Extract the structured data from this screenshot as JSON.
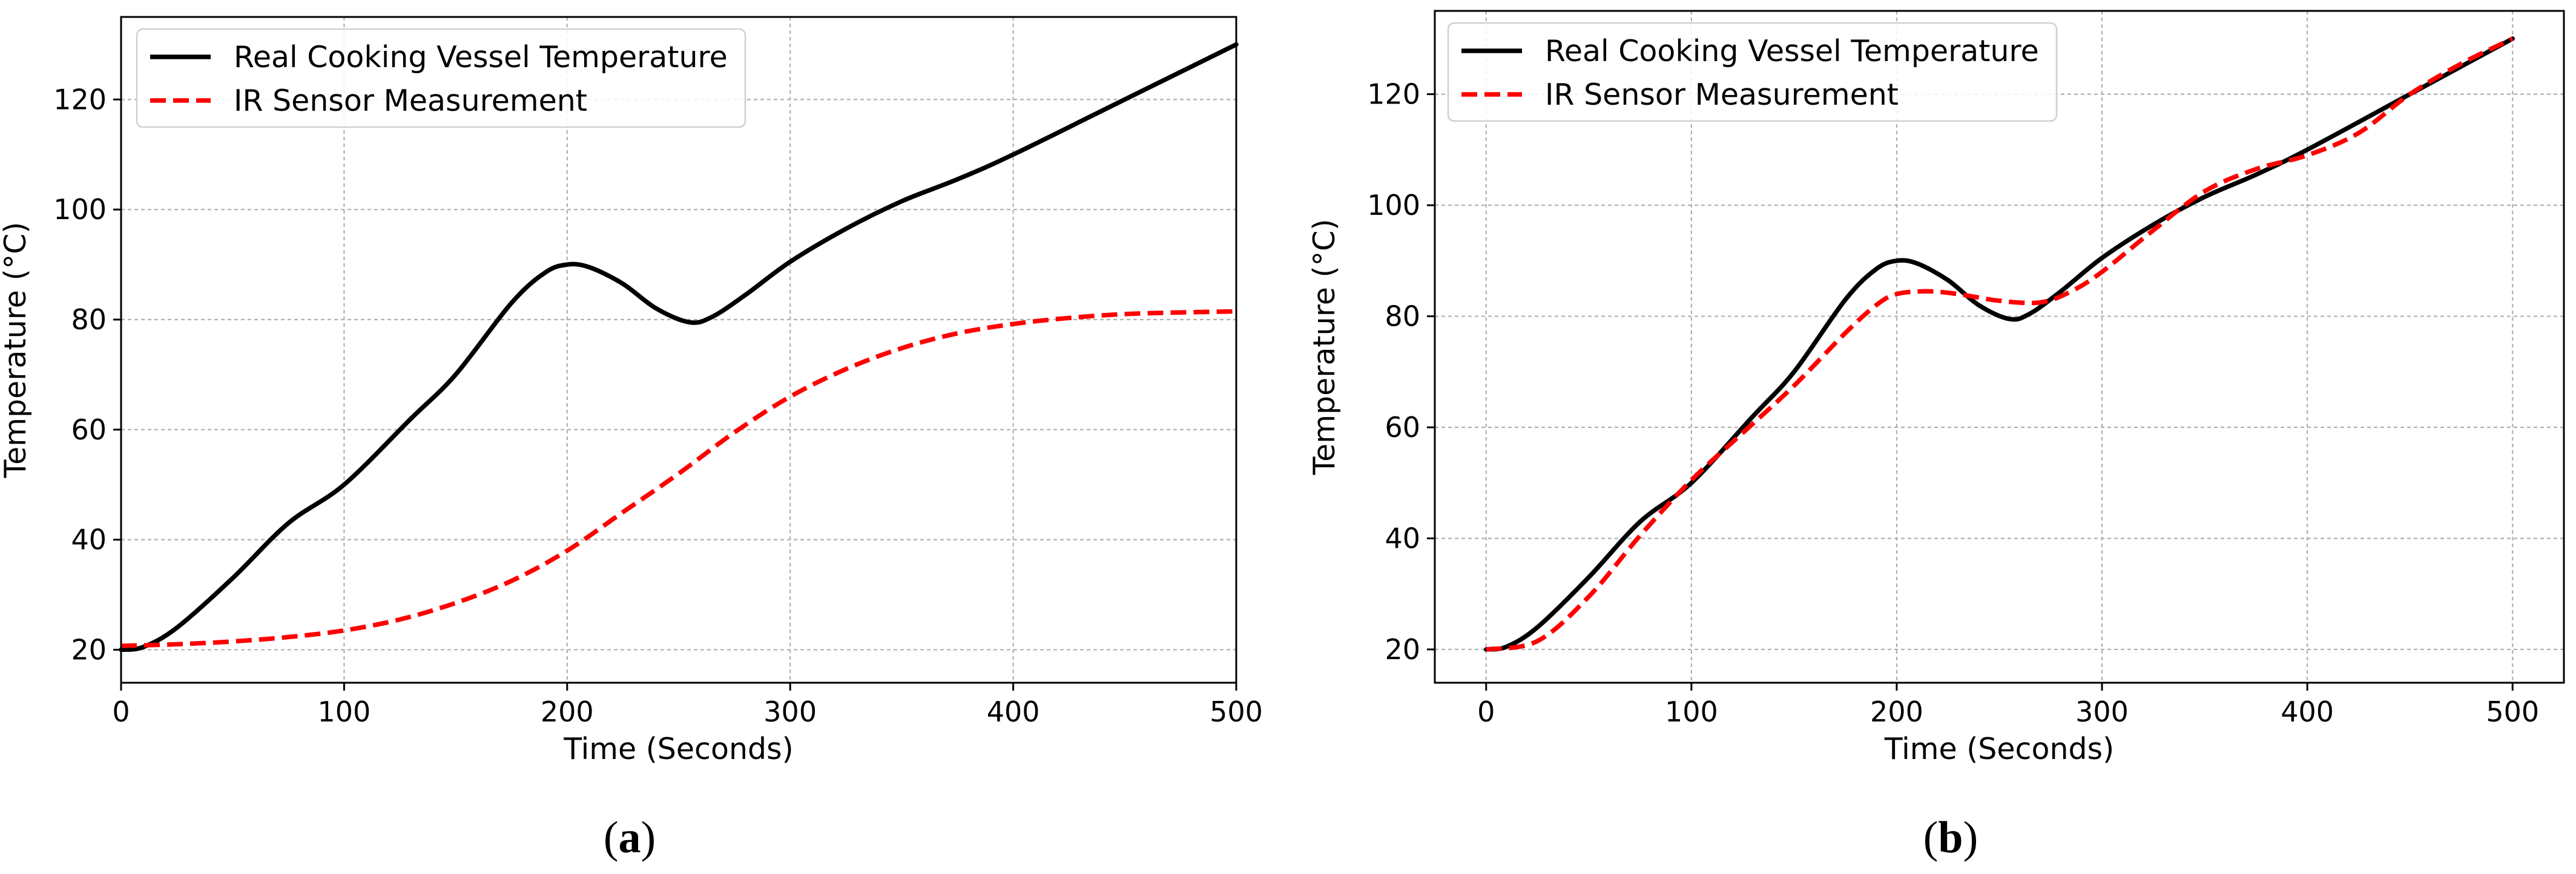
{
  "chart_data": [
    {
      "type": "line",
      "panel_label": "a",
      "xlabel": "Time (Seconds)",
      "ylabel": "Temperature (°C)",
      "xlim": [
        0,
        500
      ],
      "ylim": [
        14,
        135
      ],
      "xticks": [
        0,
        100,
        200,
        300,
        400,
        500
      ],
      "yticks": [
        20,
        40,
        60,
        80,
        100,
        120
      ],
      "grid": true,
      "legend_position": "top-left",
      "series": [
        {
          "name": "Real Cooking Vessel Temperature",
          "color": "#000000",
          "style": "solid",
          "x": [
            0,
            10,
            25,
            50,
            75,
            100,
            130,
            150,
            175,
            190,
            200,
            210,
            225,
            240,
            255,
            265,
            280,
            300,
            325,
            350,
            375,
            400,
            450,
            500
          ],
          "y": [
            20,
            20.5,
            24,
            33,
            43,
            50,
            62,
            70,
            83,
            88.5,
            90,
            89.5,
            86.5,
            82,
            79.5,
            80.5,
            84.5,
            90.5,
            96.5,
            101.5,
            105.5,
            110,
            120,
            130
          ]
        },
        {
          "name": "IR Sensor Measurement",
          "color": "#ff0000",
          "style": "dashed",
          "x": [
            0,
            25,
            50,
            75,
            100,
            125,
            150,
            175,
            200,
            225,
            250,
            275,
            300,
            325,
            350,
            375,
            400,
            425,
            450,
            475,
            500
          ],
          "y": [
            20.7,
            21,
            21.5,
            22.3,
            23.5,
            25.5,
            28.5,
            32.5,
            38,
            45,
            52,
            59.5,
            66,
            71,
            74.8,
            77.5,
            79.2,
            80.3,
            81,
            81.3,
            81.5
          ]
        }
      ]
    },
    {
      "type": "line",
      "panel_label": "b",
      "xlabel": "Time (Seconds)",
      "ylabel": "Temperature (°C)",
      "xlim": [
        -25,
        525
      ],
      "ylim": [
        14,
        135
      ],
      "xticks": [
        0,
        100,
        200,
        300,
        400,
        500
      ],
      "yticks": [
        20,
        40,
        60,
        80,
        100,
        120
      ],
      "grid": true,
      "legend_position": "top-left",
      "series": [
        {
          "name": "Real Cooking Vessel Temperature",
          "color": "#000000",
          "style": "solid",
          "x": [
            0,
            10,
            25,
            50,
            75,
            100,
            130,
            150,
            175,
            190,
            200,
            210,
            225,
            240,
            255,
            265,
            280,
            300,
            325,
            350,
            375,
            400,
            450,
            500
          ],
          "y": [
            20,
            20.5,
            24,
            33,
            43,
            50,
            62,
            70,
            83,
            88.5,
            90,
            89.5,
            86.5,
            82,
            79.5,
            80.5,
            84.5,
            90.5,
            96.5,
            101.5,
            105.5,
            110,
            120,
            130
          ]
        },
        {
          "name": "IR Sensor Measurement",
          "color": "#ff0000",
          "style": "dashed",
          "x": [
            0,
            25,
            50,
            75,
            100,
            125,
            150,
            175,
            190,
            200,
            215,
            230,
            250,
            270,
            285,
            300,
            325,
            350,
            375,
            400,
            425,
            450,
            475,
            500
          ],
          "y": [
            20,
            21.5,
            29.5,
            40.5,
            50.5,
            59,
            67.5,
            77,
            82,
            84,
            84.5,
            84,
            82.8,
            82.5,
            84.5,
            88,
            95.5,
            102.5,
            106.5,
            109,
            113,
            120,
            125.5,
            130
          ]
        }
      ]
    }
  ],
  "captions": [
    "a",
    "b"
  ]
}
